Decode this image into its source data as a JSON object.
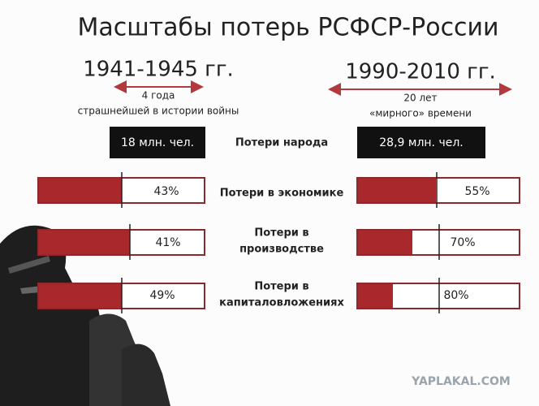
{
  "title": "Масштабы потерь РСФСР-России",
  "periods": [
    {
      "years": "1941-1945 гг.",
      "note": [
        "4 года",
        "страшнейшей в истории войны"
      ],
      "population_loss": "18 млн. чел."
    },
    {
      "years": "1990-2010 гг.",
      "note": [
        "20 лет",
        "«мирного» времени"
      ],
      "population_loss": "28,9 млн. чел."
    }
  ],
  "population_label": "Потери народа",
  "metrics": [
    {
      "label": [
        "Потери в экономике"
      ],
      "left": "43%",
      "right": "55%"
    },
    {
      "label": [
        "Потери в",
        "производстве"
      ],
      "left": "41%",
      "right": "70%"
    },
    {
      "label": [
        "Потери в",
        "капиталовложениях"
      ],
      "left": "49%",
      "right": "80%"
    }
  ],
  "watermark": "YAPLAKAL.COM"
}
